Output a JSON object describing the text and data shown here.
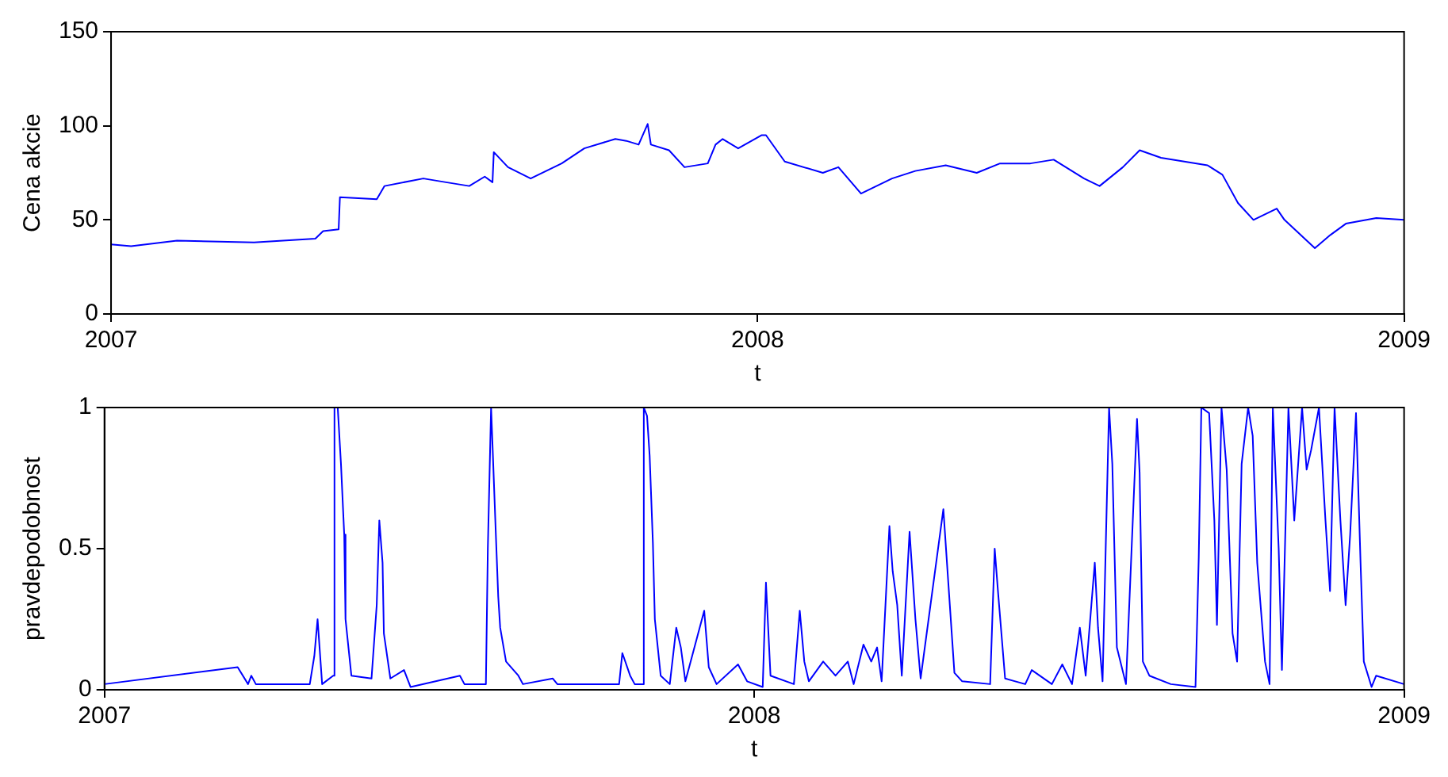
{
  "chart_data": [
    {
      "type": "line",
      "ylabel": "Cena akcie",
      "xlabel": "t",
      "xlim": [
        2007,
        2009
      ],
      "xticks": [
        {
          "value": 2007,
          "label": "2007"
        },
        {
          "value": 2008,
          "label": "2008"
        },
        {
          "value": 2009,
          "label": "2009"
        }
      ],
      "ylim": [
        0,
        150
      ],
      "yticks": [
        0,
        50,
        100,
        150
      ],
      "grid": false,
      "legend": false,
      "marker": "none",
      "line_style": "solid",
      "series": [
        {
          "color": "#0000ff",
          "x": [
            2007.0,
            2007.031,
            2007.102,
            2007.221,
            2007.316,
            2007.328,
            2007.352,
            2007.354,
            2007.411,
            2007.423,
            2007.483,
            2007.518,
            2007.554,
            2007.578,
            2007.59,
            2007.592,
            2007.614,
            2007.649,
            2007.697,
            2007.732,
            2007.78,
            2007.797,
            2007.816,
            2007.83,
            2007.835,
            2007.863,
            2007.887,
            2007.923,
            2007.935,
            2007.946,
            2007.97,
            2008.006,
            2008.013,
            2008.042,
            2008.101,
            2008.125,
            2008.16,
            2008.208,
            2008.244,
            2008.291,
            2008.339,
            2008.375,
            2008.422,
            2008.458,
            2008.505,
            2008.529,
            2008.565,
            2008.591,
            2008.624,
            2008.696,
            2008.719,
            2008.743,
            2008.767,
            2008.803,
            2008.815,
            2008.862,
            2008.886,
            2008.91,
            2008.957,
            2009.0
          ],
          "values": [
            37,
            36,
            39,
            38,
            40,
            44,
            45,
            62,
            61,
            68,
            72,
            70,
            68,
            73,
            70,
            86,
            78,
            72,
            80,
            88,
            93,
            92,
            90,
            101,
            90,
            87,
            78,
            80,
            90,
            93,
            88,
            95,
            95,
            81,
            75,
            78,
            64,
            72,
            76,
            79,
            75,
            80,
            80,
            82,
            72,
            68,
            78,
            87,
            83,
            79,
            74,
            59,
            50,
            56,
            50,
            35,
            42,
            48,
            51,
            50
          ]
        }
      ]
    },
    {
      "type": "line",
      "ylabel": "pravdepodobnost",
      "xlabel": "t",
      "xlim": [
        2007,
        2009
      ],
      "xticks": [
        {
          "value": 2007,
          "label": "2007"
        },
        {
          "value": 2008,
          "label": "2008"
        },
        {
          "value": 2009,
          "label": "2009"
        }
      ],
      "ylim": [
        0,
        1
      ],
      "yticks": [
        0,
        0.5,
        1
      ],
      "grid": false,
      "legend": false,
      "marker": "none",
      "line_style": "solid",
      "series": [
        {
          "color": "#0000ff",
          "x": [
            2007.0,
            2007.205,
            2007.221,
            2007.226,
            2007.233,
            2007.316,
            2007.323,
            2007.328,
            2007.335,
            2007.352,
            2007.354,
            2007.359,
            2007.364,
            2007.369,
            2007.371,
            2007.38,
            2007.411,
            2007.419,
            2007.423,
            2007.428,
            2007.43,
            2007.44,
            2007.461,
            2007.471,
            2007.547,
            2007.554,
            2007.587,
            2007.59,
            2007.595,
            2007.597,
            2007.602,
            2007.606,
            2007.609,
            2007.618,
            2007.637,
            2007.644,
            2007.69,
            2007.697,
            2007.792,
            2007.797,
            2007.809,
            2007.816,
            2007.828,
            2007.83,
            2007.835,
            2007.839,
            2007.844,
            2007.847,
            2007.856,
            2007.87,
            2007.88,
            2007.887,
            2007.894,
            2007.923,
            2007.93,
            2007.942,
            2007.975,
            2007.989,
            2008.013,
            2008.018,
            2008.025,
            2008.061,
            2008.07,
            2008.077,
            2008.084,
            2008.106,
            2008.125,
            2008.144,
            2008.153,
            2008.168,
            2008.18,
            2008.189,
            2008.196,
            2008.208,
            2008.213,
            2008.22,
            2008.227,
            2008.239,
            2008.248,
            2008.256,
            2008.291,
            2008.298,
            2008.308,
            2008.32,
            2008.363,
            2008.37,
            2008.375,
            2008.386,
            2008.417,
            2008.427,
            2008.458,
            2008.474,
            2008.489,
            2008.501,
            2008.51,
            2008.524,
            2008.529,
            2008.536,
            2008.541,
            2008.546,
            2008.551,
            2008.558,
            2008.572,
            2008.589,
            2008.593,
            2008.598,
            2008.608,
            2008.641,
            2008.679,
            2008.684,
            2008.688,
            2008.7,
            2008.708,
            2008.712,
            2008.719,
            2008.727,
            2008.736,
            2008.743,
            2008.75,
            2008.76,
            2008.767,
            2008.774,
            2008.786,
            2008.793,
            2008.798,
            2008.807,
            2008.812,
            2008.822,
            2008.831,
            2008.843,
            2008.85,
            2008.857,
            2008.869,
            2008.879,
            2008.886,
            2008.893,
            2008.902,
            2008.91,
            2008.917,
            2008.926,
            2008.933,
            2008.938,
            2008.95,
            2008.957,
            2009.0
          ],
          "values": [
            0.02,
            0.08,
            0.02,
            0.05,
            0.02,
            0.02,
            0.12,
            0.25,
            0.02,
            0.05,
            1,
            1,
            0.8,
            0.55,
            0.25,
            0.05,
            0.04,
            0.3,
            0.6,
            0.45,
            0.2,
            0.04,
            0.07,
            0.01,
            0.05,
            0.02,
            0.02,
            0.5,
            1,
            0.88,
            0.57,
            0.33,
            0.22,
            0.1,
            0.05,
            0.02,
            0.04,
            0.02,
            0.02,
            0.13,
            0.05,
            0.02,
            0.02,
            1,
            0.97,
            0.83,
            0.52,
            0.25,
            0.05,
            0.02,
            0.22,
            0.15,
            0.03,
            0.28,
            0.08,
            0.02,
            0.09,
            0.03,
            0.01,
            0.38,
            0.05,
            0.02,
            0.28,
            0.1,
            0.03,
            0.1,
            0.05,
            0.1,
            0.02,
            0.16,
            0.1,
            0.15,
            0.03,
            0.58,
            0.42,
            0.3,
            0.05,
            0.56,
            0.25,
            0.04,
            0.64,
            0.4,
            0.06,
            0.03,
            0.02,
            0.5,
            0.35,
            0.04,
            0.02,
            0.07,
            0.02,
            0.09,
            0.02,
            0.22,
            0.05,
            0.45,
            0.22,
            0.03,
            0.52,
            1,
            0.8,
            0.15,
            0.02,
            0.96,
            0.77,
            0.1,
            0.05,
            0.02,
            0.01,
            0.47,
            1,
            0.98,
            0.6,
            0.23,
            1,
            0.78,
            0.2,
            0.1,
            0.8,
            1,
            0.9,
            0.45,
            0.1,
            0.02,
            1,
            0.5,
            0.07,
            1,
            0.6,
            1,
            0.78,
            0.85,
            1,
            0.6,
            0.35,
            1,
            0.6,
            0.3,
            0.55,
            0.98,
            0.45,
            0.1,
            0.01,
            0.05,
            0.02
          ]
        }
      ]
    }
  ]
}
